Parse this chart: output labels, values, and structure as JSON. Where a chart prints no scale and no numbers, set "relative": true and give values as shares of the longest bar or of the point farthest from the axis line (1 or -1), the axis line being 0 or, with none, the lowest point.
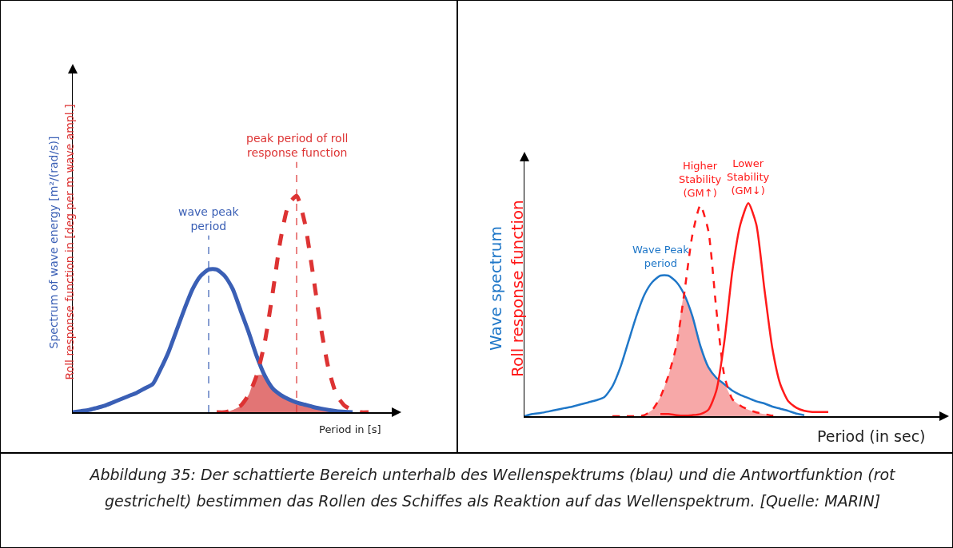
{
  "chart_data": [
    {
      "type": "line",
      "relative": true,
      "xlabel": "Period in [s]",
      "ylabel": "Spectrum of wave energy [m²/(rad/s)]\nRoll response function in [deg per m wave ampl.]",
      "categories": [
        null,
        null,
        null,
        null,
        null,
        null,
        null,
        null,
        null,
        null,
        null,
        null,
        null,
        null,
        null,
        null,
        null,
        null,
        null,
        null,
        null,
        null,
        null,
        null,
        null,
        null,
        null,
        null,
        null,
        null,
        null,
        null,
        null,
        null,
        null,
        null,
        null,
        null,
        null,
        null,
        null
      ],
      "series": [
        {
          "color": "#3a5fb5",
          "line_style": "solid",
          "values": [
            0,
            0.005,
            0.01,
            0.02,
            0.03,
            0.045,
            0.06,
            0.075,
            0.09,
            0.11,
            0.13,
            0.2,
            0.28,
            0.38,
            0.48,
            0.57,
            0.63,
            0.66,
            0.66,
            0.63,
            0.57,
            0.47,
            0.37,
            0.26,
            0.17,
            0.11,
            0.08,
            0.06,
            0.045,
            0.035,
            0.025,
            0.017,
            0.01,
            0.005,
            0.002,
            0,
            null,
            null,
            null,
            null,
            null
          ]
        },
        {
          "color": "#dd3333",
          "line_style": "dashed",
          "values": [
            null,
            null,
            null,
            null,
            null,
            null,
            null,
            null,
            null,
            null,
            null,
            null,
            null,
            null,
            null,
            null,
            null,
            null,
            0,
            0,
            0.01,
            0.03,
            0.08,
            0.17,
            0.32,
            0.55,
            0.8,
            0.96,
            1,
            0.88,
            0.65,
            0.4,
            0.2,
            0.08,
            0.03,
            0.01,
            0,
            0,
            null,
            null,
            null
          ]
        },
        {
          "type": "area",
          "color": "#e27575",
          "values": [
            null,
            null,
            null,
            null,
            null,
            null,
            null,
            null,
            null,
            null,
            null,
            null,
            null,
            null,
            null,
            null,
            null,
            null,
            0,
            0,
            0.01,
            0.03,
            0.08,
            0.17,
            0.17,
            0.11,
            0.08,
            0.06,
            0.045,
            0.035,
            0.025,
            0.017,
            0.01,
            0.005,
            0.002,
            0,
            null,
            null,
            null,
            null,
            null
          ]
        }
      ],
      "annotations": [
        "wave peak period",
        "peak period of roll response function"
      ]
    },
    {
      "type": "line",
      "relative": true,
      "xlabel": "Period (in sec)",
      "ylabel": "Wave spectrum\nRoll response function",
      "categories": [
        null,
        null,
        null,
        null,
        null,
        null,
        null,
        null,
        null,
        null,
        null,
        null,
        null,
        null,
        null,
        null,
        null,
        null,
        null,
        null,
        null,
        null,
        null,
        null,
        null,
        null,
        null,
        null,
        null,
        null,
        null,
        null,
        null,
        null,
        null,
        null,
        null,
        null,
        null,
        null,
        null,
        null,
        null,
        null,
        null,
        null,
        null,
        null,
        null,
        null,
        null,
        null,
        null
      ],
      "series": [
        {
          "name": "Wave Peak period",
          "color": "#1f77c8",
          "line_style": "solid",
          "values": [
            0,
            0.01,
            0.015,
            0.022,
            0.03,
            0.038,
            0.045,
            0.055,
            0.065,
            0.075,
            0.09,
            0.14,
            0.23,
            0.35,
            0.47,
            0.57,
            0.63,
            0.66,
            0.66,
            0.63,
            0.57,
            0.47,
            0.33,
            0.23,
            0.18,
            0.15,
            0.12,
            0.1,
            0.085,
            0.07,
            0.06,
            0.045,
            0.035,
            0.025,
            0.012,
            0.005,
            null,
            null,
            null,
            null,
            null,
            null,
            null,
            null,
            null,
            null,
            null,
            null,
            null,
            null,
            null,
            null,
            null
          ]
        },
        {
          "name": "Higher Stability (GM↑)",
          "color": "#ff1a1a",
          "line_style": "dashed",
          "values": [
            null,
            null,
            null,
            null,
            null,
            null,
            null,
            null,
            null,
            null,
            null,
            0,
            0,
            0,
            0,
            0.005,
            0.03,
            0.09,
            0.19,
            0.33,
            0.58,
            0.85,
            0.99,
            0.87,
            0.5,
            0.19,
            0.08,
            0.05,
            0.03,
            0.018,
            0.01,
            0.003,
            0,
            null,
            null,
            null,
            null,
            null,
            null,
            null,
            null,
            null,
            null,
            null,
            null,
            null,
            null,
            null,
            null,
            null,
            null,
            null,
            null
          ]
        },
        {
          "name": "Lower Stability (GM↓)",
          "color": "#ff1a1a",
          "line_style": "solid",
          "values": [
            null,
            null,
            null,
            null,
            null,
            null,
            null,
            null,
            null,
            null,
            null,
            null,
            null,
            null,
            null,
            null,
            null,
            0.01,
            0.01,
            0.005,
            0.003,
            0.005,
            0.01,
            0.03,
            0.12,
            0.35,
            0.68,
            0.9,
            1,
            0.9,
            0.6,
            0.32,
            0.15,
            0.07,
            0.04,
            0.025,
            0.02,
            0.02,
            0.02,
            null,
            null,
            null,
            null,
            null,
            null,
            null,
            null,
            null,
            null,
            null,
            null,
            null,
            null
          ]
        },
        {
          "type": "area",
          "color": "#f7a8a8",
          "values": [
            null,
            null,
            null,
            null,
            null,
            null,
            null,
            null,
            null,
            null,
            null,
            null,
            null,
            null,
            null,
            0.005,
            0.03,
            0.09,
            0.19,
            0.33,
            0.57,
            0.47,
            0.33,
            0.23,
            0.18,
            0.15,
            0.08,
            0.05,
            0.03,
            0.018,
            0.01,
            0.003,
            0,
            null,
            null,
            null,
            null,
            null,
            null,
            null,
            null,
            null,
            null,
            null,
            null,
            null,
            null,
            null,
            null,
            null,
            null,
            null,
            null
          ]
        }
      ],
      "annotations": [
        "Abbildung 35: Der schattierte Bereich unterhalb des Wellenspektrums (blau) und die Antwortfunktion (rot gestrichelt) bestimmen das Rollen des Schiffes als Reaktion auf das Wellenspektrum. [Quelle: MARIN]"
      ]
    }
  ]
}
